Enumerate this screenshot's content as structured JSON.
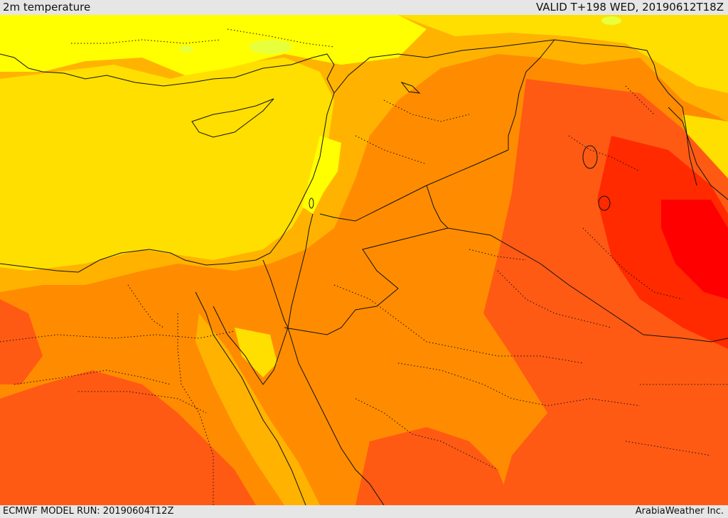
{
  "header": {
    "title": "2m temperature",
    "valid_time": "VALID T+198 WED, 20190612T18Z"
  },
  "footer": {
    "model_run": "ECMWF MODEL RUN: 20190604T12Z",
    "credit": "ArabiaWeather Inc."
  },
  "map": {
    "variable": "2m temperature",
    "colors": {
      "coolest": "#e8ff3c",
      "cool": "#ffff00",
      "mild": "#ffdf00",
      "warm": "#ffb300",
      "hot": "#ff8c00",
      "very_hot": "#ff5a14",
      "extreme": "#ff2a00",
      "max": "#ff0000"
    }
  }
}
